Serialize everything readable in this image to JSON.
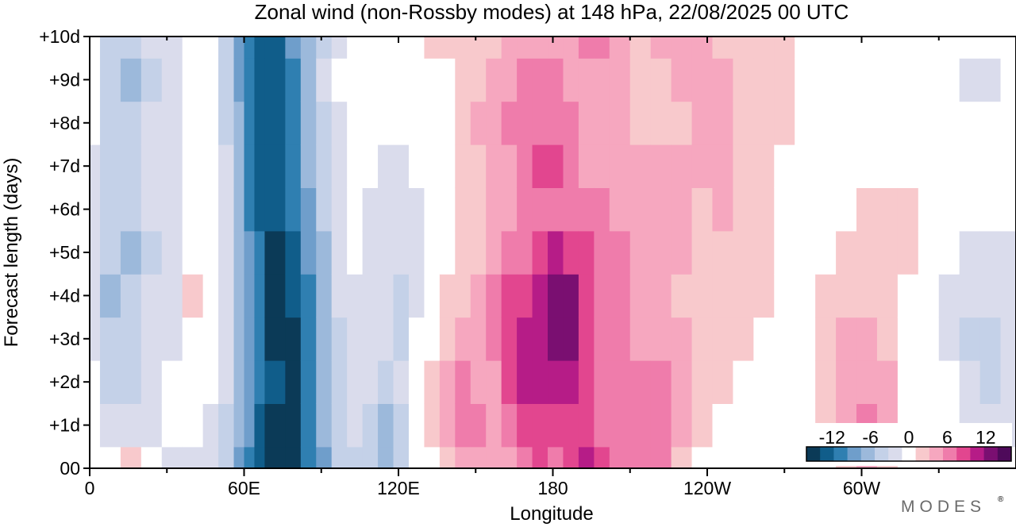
{
  "chart_data": {
    "type": "heatmap",
    "title": "Zonal wind (non-Rossby modes) at 148 hPa,  22/08/2025  00 UTC",
    "xlabel": "Longitude",
    "ylabel": "Forecast length (days)",
    "x_ticks": [
      {
        "lon": 0,
        "label": "0"
      },
      {
        "lon": 60,
        "label": "60E"
      },
      {
        "lon": 120,
        "label": "120E"
      },
      {
        "lon": 180,
        "label": "180"
      },
      {
        "lon": 240,
        "label": "120W"
      },
      {
        "lon": 300,
        "label": "60W"
      }
    ],
    "x_minor_ticks": [
      30,
      90,
      150,
      210,
      270,
      330
    ],
    "xlim": [
      0,
      360
    ],
    "y_ticks": [
      {
        "day": 0,
        "label": "00"
      },
      {
        "day": 1,
        "label": "+1d"
      },
      {
        "day": 2,
        "label": "+2d"
      },
      {
        "day": 3,
        "label": "+3d"
      },
      {
        "day": 4,
        "label": "+4d"
      },
      {
        "day": 5,
        "label": "+5d"
      },
      {
        "day": 6,
        "label": "+6d"
      },
      {
        "day": 7,
        "label": "+7d"
      },
      {
        "day": 8,
        "label": "+8d"
      },
      {
        "day": 9,
        "label": "+9d"
      },
      {
        "day": 10,
        "label": "+10d"
      }
    ],
    "ylim": [
      0,
      10
    ],
    "colorbar": {
      "levels": [
        -14,
        -12,
        -10,
        -8,
        -6,
        -4,
        -2,
        2,
        4,
        6,
        8,
        10,
        12,
        14
      ],
      "labels": [
        {
          "value": -12,
          "text": "-12"
        },
        {
          "value": -6,
          "text": "-6"
        },
        {
          "value": 0,
          "text": "0"
        },
        {
          "value": 6,
          "text": "6"
        },
        {
          "value": 12,
          "text": "12"
        }
      ],
      "colors": [
        "#0b3a57",
        "#105d8a",
        "#2f7fb1",
        "#6f9ecb",
        "#9cb9db",
        "#c4d1e8",
        "#dadcec",
        "#ffffff",
        "#f8c9cc",
        "#f6a7bf",
        "#ef7cab",
        "#e2468f",
        "#b61c87",
        "#7a0f71",
        "#4e0a5a"
      ]
    },
    "bands": [
      {
        "lon_start": 0,
        "lon_end": 4,
        "day_values": [
          -2,
          -1,
          -1,
          -3,
          -4,
          -4,
          -3,
          -3,
          -2,
          -2,
          -1
        ]
      },
      {
        "lon_start": 4,
        "lon_end": 12,
        "day_values": [
          -2,
          -3,
          -5,
          -6,
          -7,
          -6,
          -6,
          -5,
          -5,
          -6,
          -5
        ]
      },
      {
        "lon_start": 12,
        "lon_end": 20,
        "day_values": [
          3,
          -3,
          -5,
          -6,
          -6,
          -7,
          -6,
          -6,
          -6,
          -7,
          -5
        ]
      },
      {
        "lon_start": 20,
        "lon_end": 28,
        "day_values": [
          -2,
          -3,
          -3,
          -4,
          -4,
          -5,
          -4,
          -4,
          -4,
          -5,
          -4
        ]
      },
      {
        "lon_start": 28,
        "lon_end": 36,
        "day_values": [
          -3,
          -2,
          -2,
          -3,
          -3,
          -3,
          -3,
          -3,
          -3,
          -4,
          -3
        ]
      },
      {
        "lon_start": 36,
        "lon_end": 44,
        "day_values": [
          -3,
          -2,
          -1,
          1,
          3,
          0,
          -1,
          -1,
          -1,
          -2,
          -2
        ]
      },
      {
        "lon_start": 44,
        "lon_end": 50,
        "day_values": [
          -4,
          -3,
          -2,
          -2,
          -2,
          -2,
          -2,
          -2,
          -1,
          0,
          -1
        ]
      },
      {
        "lon_start": 50,
        "lon_end": 56,
        "day_values": [
          -6,
          -5,
          -4,
          -4,
          -4,
          -4,
          -4,
          -4,
          -5,
          -6,
          -6
        ]
      },
      {
        "lon_start": 56,
        "lon_end": 60,
        "day_values": [
          -9,
          -8,
          -7,
          -7,
          -7,
          -8,
          -8,
          -8,
          -8,
          -9,
          -9
        ]
      },
      {
        "lon_start": 60,
        "lon_end": 64,
        "day_values": [
          -11,
          -10,
          -10,
          -9,
          -9,
          -10,
          -11,
          -11,
          -11,
          -12,
          -11
        ]
      },
      {
        "lon_start": 64,
        "lon_end": 68,
        "day_values": [
          -13,
          -13,
          -12,
          -12,
          -12,
          -12,
          -13,
          -13,
          -13,
          -14,
          -13
        ]
      },
      {
        "lon_start": 68,
        "lon_end": 76,
        "day_values": [
          -15,
          -15,
          -14,
          -15,
          -15,
          -15,
          -14,
          -13,
          -13,
          -13,
          -13
        ]
      },
      {
        "lon_start": 76,
        "lon_end": 82,
        "day_values": [
          -15,
          -15,
          -15,
          -15,
          -14,
          -14,
          -12,
          -12,
          -11,
          -11,
          -10
        ]
      },
      {
        "lon_start": 82,
        "lon_end": 88,
        "day_values": [
          -12,
          -12,
          -11,
          -12,
          -11,
          -10,
          -9,
          -8,
          -8,
          -8,
          -7
        ]
      },
      {
        "lon_start": 88,
        "lon_end": 94,
        "day_values": [
          -9,
          -8,
          -8,
          -8,
          -8,
          -7,
          -6,
          -5,
          -5,
          -4,
          -5
        ]
      },
      {
        "lon_start": 94,
        "lon_end": 100,
        "day_values": [
          -6,
          -5,
          -5,
          -5,
          -4,
          -4,
          -3,
          -3,
          -3,
          -1,
          -3
        ]
      },
      {
        "lon_start": 100,
        "lon_end": 106,
        "day_values": [
          -5,
          -4,
          -4,
          -3,
          -3,
          -2,
          -2,
          -2,
          0,
          1,
          -1
        ]
      },
      {
        "lon_start": 106,
        "lon_end": 112,
        "day_values": [
          -5,
          -6,
          -4,
          -3,
          -3,
          -3,
          -3,
          -2,
          -2,
          0,
          0
        ]
      },
      {
        "lon_start": 112,
        "lon_end": 118,
        "day_values": [
          -7,
          -8,
          -5,
          -4,
          -3,
          -3,
          -3,
          -3,
          -2,
          0,
          1
        ]
      },
      {
        "lon_start": 118,
        "lon_end": 124,
        "day_values": [
          -5,
          -6,
          -4,
          -6,
          -5,
          -4,
          -3,
          -3,
          -2,
          0,
          0
        ]
      },
      {
        "lon_start": 124,
        "lon_end": 130,
        "day_values": [
          0,
          0,
          -1,
          -2,
          -3,
          -3,
          -3,
          -2,
          0,
          0,
          1
        ]
      },
      {
        "lon_start": 130,
        "lon_end": 136,
        "day_values": [
          1,
          2,
          2,
          1,
          0,
          -1,
          -2,
          -2,
          0,
          1,
          2
        ]
      },
      {
        "lon_start": 136,
        "lon_end": 142,
        "day_values": [
          2,
          4,
          4,
          3,
          2,
          1,
          0,
          0,
          1,
          1,
          2
        ]
      },
      {
        "lon_start": 142,
        "lon_end": 148,
        "day_values": [
          4,
          6,
          6,
          4,
          3,
          3,
          2,
          2,
          3,
          2,
          2
        ]
      },
      {
        "lon_start": 148,
        "lon_end": 154,
        "day_values": [
          5,
          6,
          5,
          4,
          4,
          3,
          3,
          3,
          4,
          3,
          2
        ]
      },
      {
        "lon_start": 154,
        "lon_end": 160,
        "day_values": [
          4,
          5,
          5,
          6,
          6,
          5,
          4,
          4,
          5,
          4,
          3
        ]
      },
      {
        "lon_start": 160,
        "lon_end": 166,
        "day_values": [
          5,
          7,
          9,
          9,
          8,
          6,
          5,
          5,
          6,
          5,
          4
        ]
      },
      {
        "lon_start": 166,
        "lon_end": 172,
        "day_values": [
          7,
          8,
          10,
          10,
          9,
          7,
          6,
          6,
          7,
          6,
          4
        ]
      },
      {
        "lon_start": 172,
        "lon_end": 178,
        "day_values": [
          8,
          8,
          10,
          11,
          11,
          8,
          7,
          8,
          7,
          6,
          5
        ]
      },
      {
        "lon_start": 178,
        "lon_end": 184,
        "day_values": [
          7,
          8,
          10,
          12,
          13,
          10,
          7,
          8,
          7,
          6,
          5
        ]
      },
      {
        "lon_start": 184,
        "lon_end": 190,
        "day_values": [
          8,
          9,
          11,
          12,
          12,
          9,
          7,
          6,
          6,
          5,
          5
        ]
      },
      {
        "lon_start": 190,
        "lon_end": 196,
        "day_values": [
          10,
          8,
          9,
          9,
          8,
          8,
          6,
          5,
          5,
          5,
          6
        ]
      },
      {
        "lon_start": 196,
        "lon_end": 202,
        "day_values": [
          9,
          7,
          7,
          6,
          6,
          7,
          6,
          5,
          5,
          5,
          6
        ]
      },
      {
        "lon_start": 202,
        "lon_end": 210,
        "day_values": [
          6,
          6,
          6,
          6,
          6,
          6,
          5,
          5,
          4,
          5,
          5
        ]
      },
      {
        "lon_start": 210,
        "lon_end": 218,
        "day_values": [
          7,
          7,
          6,
          5,
          4,
          4,
          4,
          4,
          3,
          3,
          3
        ]
      },
      {
        "lon_start": 218,
        "lon_end": 226,
        "day_values": [
          6,
          6,
          6,
          5,
          4,
          4,
          4,
          4,
          2,
          3,
          4
        ]
      },
      {
        "lon_start": 226,
        "lon_end": 234,
        "day_values": [
          3,
          4,
          4,
          4,
          3,
          4,
          5,
          4,
          3,
          4,
          4
        ]
      },
      {
        "lon_start": 234,
        "lon_end": 242,
        "day_values": [
          0,
          2,
          3,
          3,
          3,
          3,
          3,
          4,
          4,
          4,
          4
        ]
      },
      {
        "lon_start": 242,
        "lon_end": 250,
        "day_values": [
          0,
          1,
          2,
          3,
          3,
          3,
          4,
          4,
          4,
          4,
          3
        ]
      },
      {
        "lon_start": 250,
        "lon_end": 258,
        "day_values": [
          0,
          0,
          1,
          2,
          2,
          2,
          2,
          3,
          3,
          3,
          3
        ]
      },
      {
        "lon_start": 258,
        "lon_end": 266,
        "day_values": [
          0,
          0,
          1,
          1,
          2,
          2,
          2,
          2,
          2,
          3,
          3
        ]
      },
      {
        "lon_start": 266,
        "lon_end": 274,
        "day_values": [
          0,
          0,
          0,
          1,
          1,
          1,
          1,
          1,
          2,
          2,
          2
        ]
      },
      {
        "lon_start": 274,
        "lon_end": 282,
        "day_values": [
          0,
          1,
          1,
          1,
          1,
          1,
          1,
          0,
          1,
          1,
          1
        ]
      },
      {
        "lon_start": 282,
        "lon_end": 290,
        "day_values": [
          1,
          2,
          3,
          3,
          2,
          1,
          0,
          0,
          0,
          0,
          1
        ]
      },
      {
        "lon_start": 290,
        "lon_end": 298,
        "day_values": [
          3,
          4,
          5,
          4,
          3,
          2,
          1,
          0,
          0,
          0,
          1
        ]
      },
      {
        "lon_start": 298,
        "lon_end": 306,
        "day_values": [
          4,
          7,
          5,
          4,
          3,
          3,
          2,
          1,
          1,
          0,
          0
        ]
      },
      {
        "lon_start": 306,
        "lon_end": 314,
        "day_values": [
          2,
          4,
          4,
          3,
          3,
          3,
          3,
          1,
          0,
          0,
          0
        ]
      },
      {
        "lon_start": 314,
        "lon_end": 322,
        "day_values": [
          0,
          1,
          1,
          1,
          1,
          2,
          2,
          1,
          0,
          0,
          -1
        ]
      },
      {
        "lon_start": 322,
        "lon_end": 330,
        "day_values": [
          -1,
          -1,
          -1,
          -1,
          0,
          1,
          1,
          0,
          -1,
          -1,
          -1
        ]
      },
      {
        "lon_start": 330,
        "lon_end": 338,
        "day_values": [
          -2,
          -2,
          -2,
          -3,
          -3,
          -1,
          -1,
          -1,
          -2,
          -2,
          -2
        ]
      },
      {
        "lon_start": 338,
        "lon_end": 346,
        "day_values": [
          -2,
          -3,
          -4,
          -5,
          -4,
          -3,
          -2,
          -2,
          -2,
          -3,
          -2
        ]
      },
      {
        "lon_start": 346,
        "lon_end": 354,
        "day_values": [
          -2,
          -4,
          -5,
          -5,
          -4,
          -3,
          -2,
          -2,
          -2,
          -3,
          -2
        ]
      },
      {
        "lon_start": 354,
        "lon_end": 360,
        "day_values": [
          -2,
          -3,
          -3,
          -3,
          -4,
          -3,
          -2,
          -2,
          -2,
          -2,
          -2
        ]
      }
    ]
  },
  "branding": {
    "logo_text": "MODES",
    "logo_mark": "®"
  }
}
